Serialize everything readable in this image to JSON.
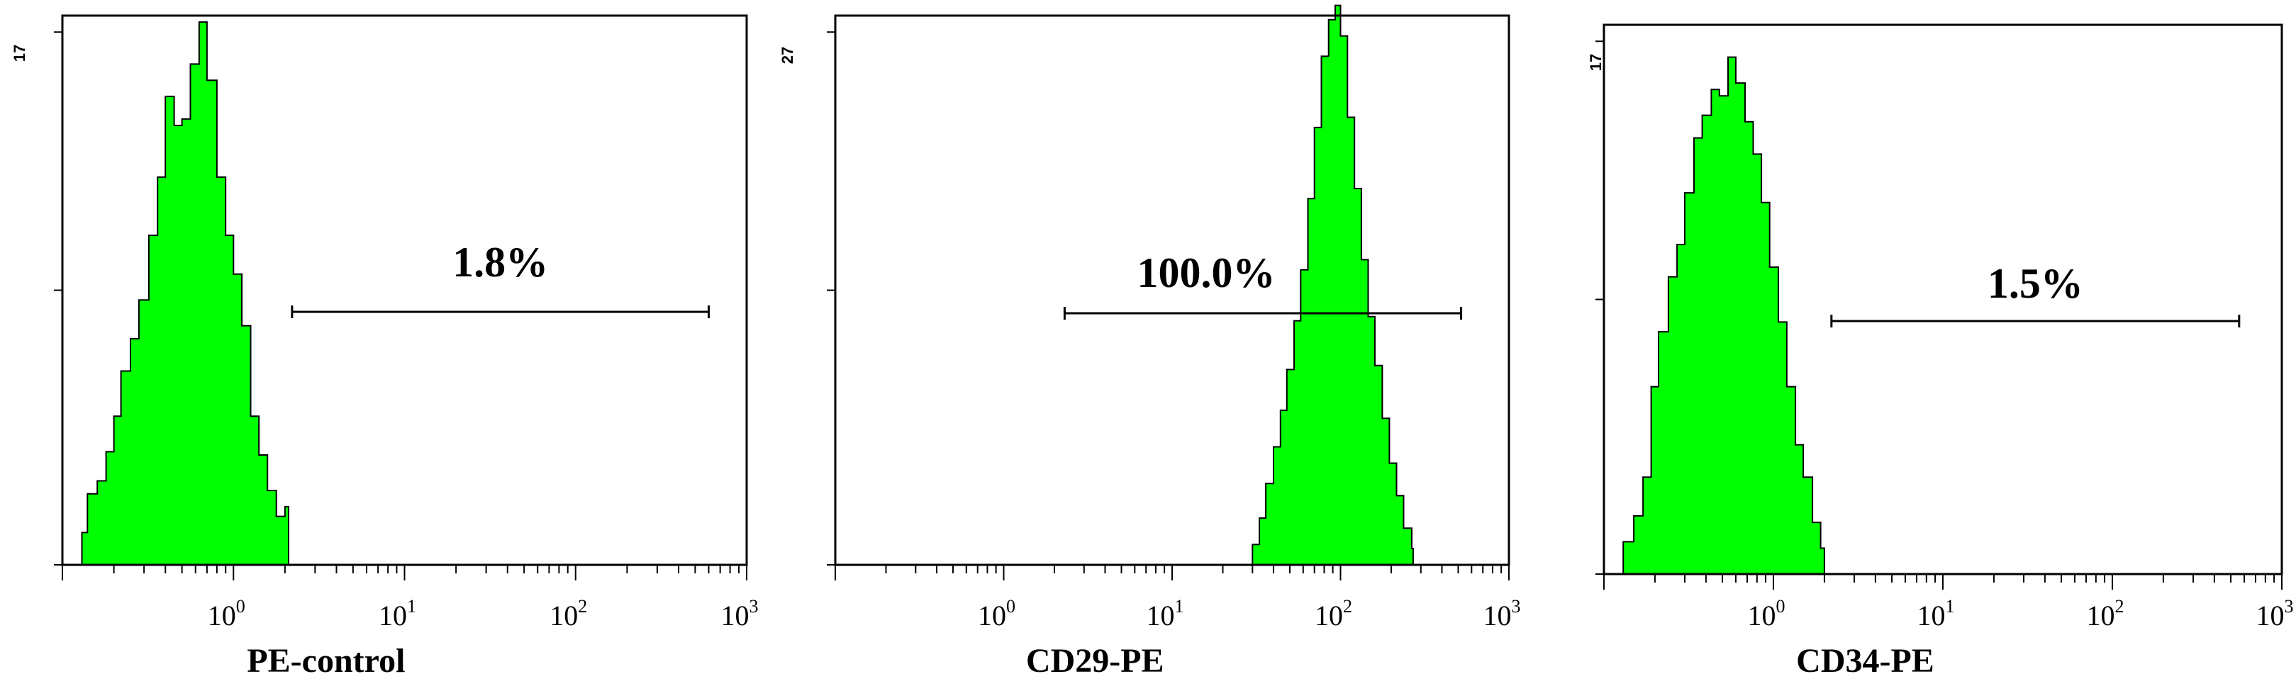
{
  "chart_data": [
    {
      "type": "histogram",
      "xlabel": "PE-control",
      "ymax_label": "17",
      "xscale": "log",
      "xlim": [
        0.1,
        1000
      ],
      "ylim": [
        0,
        17
      ],
      "xticks": [
        {
          "base": "10",
          "exp": "0"
        },
        {
          "base": "10",
          "exp": "1"
        },
        {
          "base": "10",
          "exp": "2"
        },
        {
          "base": "10",
          "exp": "3"
        }
      ],
      "fill_color": "#00ff00",
      "gate": {
        "label": "1.8%",
        "from": 2.2,
        "to": 600
      },
      "histogram": {
        "x": [
          0.13,
          0.14,
          0.16,
          0.18,
          0.2,
          0.22,
          0.25,
          0.28,
          0.32,
          0.36,
          0.4,
          0.45,
          0.5,
          0.56,
          0.63,
          0.7,
          0.8,
          0.9,
          1.0,
          1.12,
          1.26,
          1.41,
          1.58,
          1.78,
          2.0,
          2.1
        ],
        "y": [
          1.0,
          2.2,
          2.6,
          3.5,
          4.6,
          6.0,
          7.0,
          8.2,
          10.2,
          12.0,
          14.5,
          13.6,
          13.8,
          15.5,
          16.8,
          15.0,
          12.0,
          10.2,
          9.0,
          7.4,
          4.6,
          3.4,
          2.3,
          1.5,
          1.8,
          0
        ]
      }
    },
    {
      "type": "histogram",
      "xlabel": "CD29-PE",
      "ymax_label": "27",
      "xscale": "log",
      "xlim": [
        0.1,
        1000
      ],
      "ylim": [
        0,
        27
      ],
      "xticks": [
        {
          "base": "10",
          "exp": "0"
        },
        {
          "base": "10",
          "exp": "1"
        },
        {
          "base": "10",
          "exp": "2"
        },
        {
          "base": "10",
          "exp": "3"
        }
      ],
      "fill_color": "#00ff00",
      "gate": {
        "label": "100.0%",
        "from": 2.3,
        "to": 520
      },
      "histogram": {
        "x": [
          30,
          33,
          36,
          40,
          44,
          48,
          53,
          58,
          64,
          70,
          77,
          85,
          93,
          100,
          110,
          121,
          133,
          146,
          160,
          177,
          195,
          215,
          237,
          265,
          270
        ],
        "y": [
          1.0,
          2.3,
          4.0,
          5.8,
          7.6,
          9.6,
          12.0,
          14.5,
          18.0,
          21.5,
          25.0,
          26.8,
          27.5,
          26.0,
          22.0,
          18.5,
          15.0,
          12.2,
          9.8,
          7.2,
          5.0,
          3.4,
          1.8,
          0.8,
          0
        ]
      }
    },
    {
      "type": "histogram",
      "xlabel": "CD34-PE",
      "ymax_label": "17",
      "xscale": "log",
      "xlim": [
        0.1,
        1000
      ],
      "ylim": [
        0,
        17
      ],
      "xticks": [
        {
          "base": "10",
          "exp": "0"
        },
        {
          "base": "10",
          "exp": "1"
        },
        {
          "base": "10",
          "exp": "2"
        },
        {
          "base": "10",
          "exp": "3"
        }
      ],
      "fill_color": "#00ff00",
      "gate": {
        "label": "1.5%",
        "from": 2.2,
        "to": 560
      },
      "histogram": {
        "x": [
          0.13,
          0.15,
          0.17,
          0.19,
          0.21,
          0.24,
          0.27,
          0.3,
          0.34,
          0.38,
          0.43,
          0.48,
          0.54,
          0.6,
          0.68,
          0.76,
          0.85,
          0.95,
          1.07,
          1.2,
          1.35,
          1.5,
          1.7,
          1.9,
          2.0
        ],
        "y": [
          1.0,
          1.8,
          3.0,
          5.8,
          7.5,
          9.2,
          10.2,
          11.8,
          13.5,
          14.2,
          15.0,
          14.8,
          16.0,
          15.2,
          14.0,
          13.0,
          11.5,
          9.5,
          7.8,
          5.8,
          4.0,
          3.0,
          1.6,
          0.8,
          0
        ]
      }
    }
  ]
}
